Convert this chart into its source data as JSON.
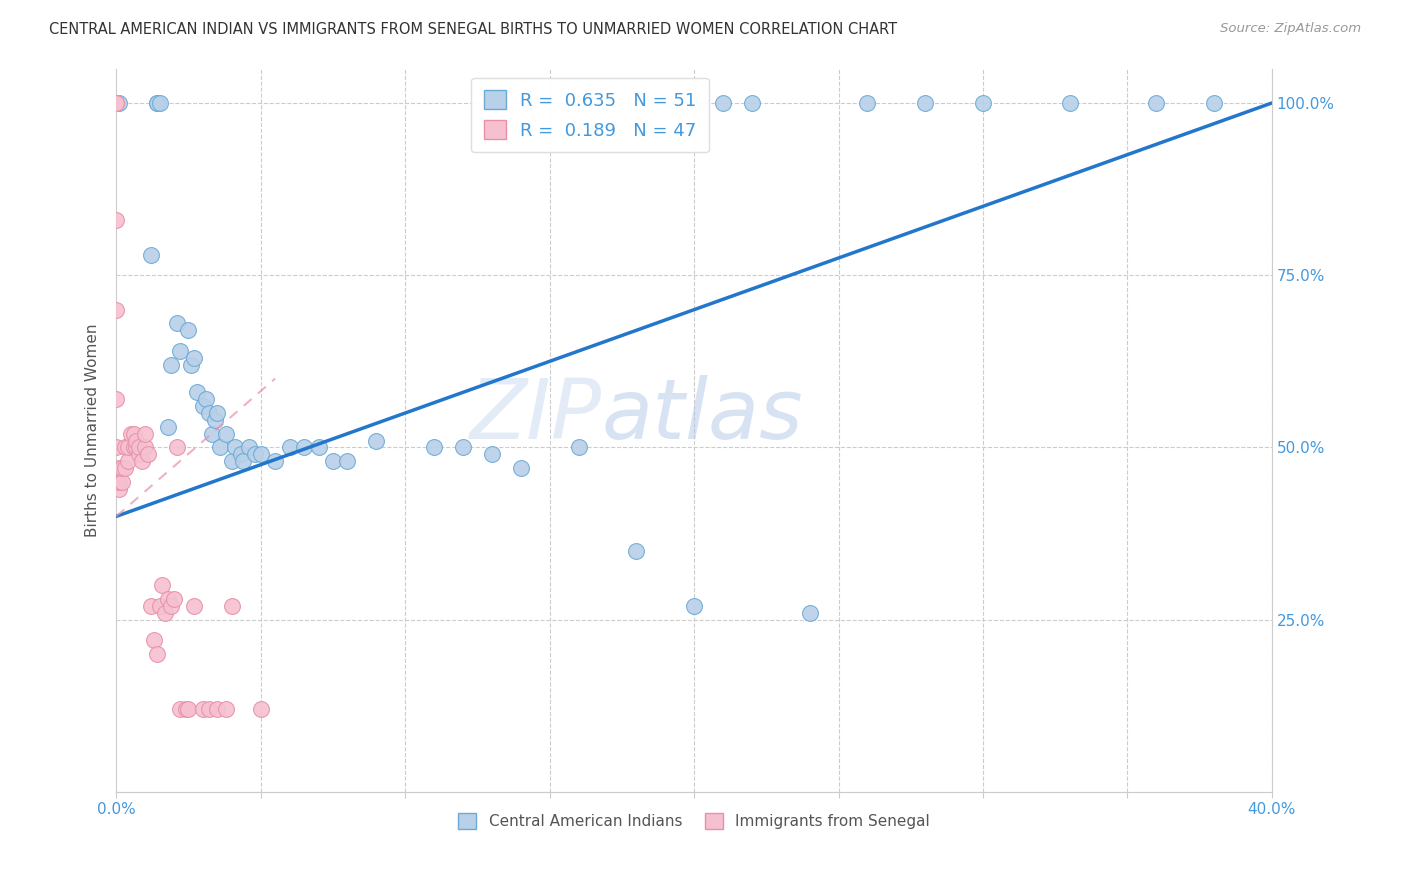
{
  "title": "CENTRAL AMERICAN INDIAN VS IMMIGRANTS FROM SENEGAL BIRTHS TO UNMARRIED WOMEN CORRELATION CHART",
  "source": "Source: ZipAtlas.com",
  "ylabel": "Births to Unmarried Women",
  "blue_R": 0.635,
  "blue_N": 51,
  "pink_R": 0.189,
  "pink_N": 47,
  "blue_color": "#b8d0e8",
  "blue_edge_color": "#6aaad4",
  "blue_line_color": "#2277cc",
  "pink_color": "#f5c0d0",
  "pink_edge_color": "#e890a8",
  "pink_line_color": "#e890a8",
  "legend_blue": "Central American Indians",
  "legend_pink": "Immigrants from Senegal",
  "blue_points_x": [
    0.001,
    0.012,
    0.014,
    0.014,
    0.015,
    0.018,
    0.019,
    0.021,
    0.022,
    0.025,
    0.026,
    0.027,
    0.028,
    0.03,
    0.031,
    0.032,
    0.033,
    0.034,
    0.035,
    0.036,
    0.038,
    0.04,
    0.041,
    0.043,
    0.044,
    0.046,
    0.048,
    0.05,
    0.055,
    0.06,
    0.065,
    0.07,
    0.075,
    0.08,
    0.09,
    0.11,
    0.12,
    0.13,
    0.14,
    0.16,
    0.18,
    0.2,
    0.21,
    0.22,
    0.24,
    0.26,
    0.28,
    0.3,
    0.33,
    0.36,
    0.38
  ],
  "blue_points_y": [
    1.0,
    0.78,
    1.0,
    1.0,
    1.0,
    0.53,
    0.62,
    0.68,
    0.64,
    0.67,
    0.62,
    0.63,
    0.58,
    0.56,
    0.57,
    0.55,
    0.52,
    0.54,
    0.55,
    0.5,
    0.52,
    0.48,
    0.5,
    0.49,
    0.48,
    0.5,
    0.49,
    0.49,
    0.48,
    0.5,
    0.5,
    0.5,
    0.48,
    0.48,
    0.51,
    0.5,
    0.5,
    0.49,
    0.47,
    0.5,
    0.35,
    0.27,
    1.0,
    1.0,
    0.26,
    1.0,
    1.0,
    1.0,
    1.0,
    1.0,
    1.0
  ],
  "pink_points_x": [
    0.0,
    0.0,
    0.0,
    0.0,
    0.0,
    0.0,
    0.0,
    0.001,
    0.001,
    0.001,
    0.002,
    0.002,
    0.003,
    0.003,
    0.004,
    0.004,
    0.005,
    0.006,
    0.006,
    0.007,
    0.007,
    0.008,
    0.008,
    0.009,
    0.01,
    0.01,
    0.011,
    0.012,
    0.013,
    0.014,
    0.015,
    0.016,
    0.017,
    0.018,
    0.019,
    0.02,
    0.021,
    0.022,
    0.024,
    0.025,
    0.027,
    0.03,
    0.032,
    0.035,
    0.038,
    0.04,
    0.05
  ],
  "pink_points_y": [
    1.0,
    1.0,
    0.83,
    0.7,
    0.57,
    0.5,
    0.45,
    0.44,
    0.45,
    0.47,
    0.45,
    0.47,
    0.47,
    0.5,
    0.48,
    0.5,
    0.52,
    0.5,
    0.52,
    0.5,
    0.51,
    0.49,
    0.5,
    0.48,
    0.5,
    0.52,
    0.49,
    0.27,
    0.22,
    0.2,
    0.27,
    0.3,
    0.26,
    0.28,
    0.27,
    0.28,
    0.5,
    0.12,
    0.12,
    0.12,
    0.27,
    0.12,
    0.12,
    0.12,
    0.12,
    0.27,
    0.12
  ],
  "xlim": [
    0.0,
    0.4
  ],
  "ylim": [
    0.0,
    1.05
  ],
  "blue_line_x": [
    0.0,
    0.4
  ],
  "blue_line_y": [
    0.4,
    1.0
  ],
  "pink_line_x": [
    0.0,
    0.055
  ],
  "pink_line_y": [
    0.4,
    0.6
  ],
  "watermark_text": "ZIP",
  "watermark_text2": "atlas",
  "grid_color": "#cccccc",
  "background_color": "#ffffff",
  "tick_color": "#4499dd",
  "ylabel_color": "#555555",
  "x_ticks": [
    0.0,
    0.05,
    0.1,
    0.15,
    0.2,
    0.25,
    0.3,
    0.35,
    0.4
  ],
  "y_ticks_right": [
    0.0,
    0.25,
    0.5,
    0.75,
    1.0
  ],
  "y_tick_labels_right": [
    "",
    "25.0%",
    "50.0%",
    "75.0%",
    "100.0%"
  ],
  "x_tick_show_labels": [
    true,
    false,
    false,
    false,
    false,
    false,
    false,
    false,
    true
  ]
}
